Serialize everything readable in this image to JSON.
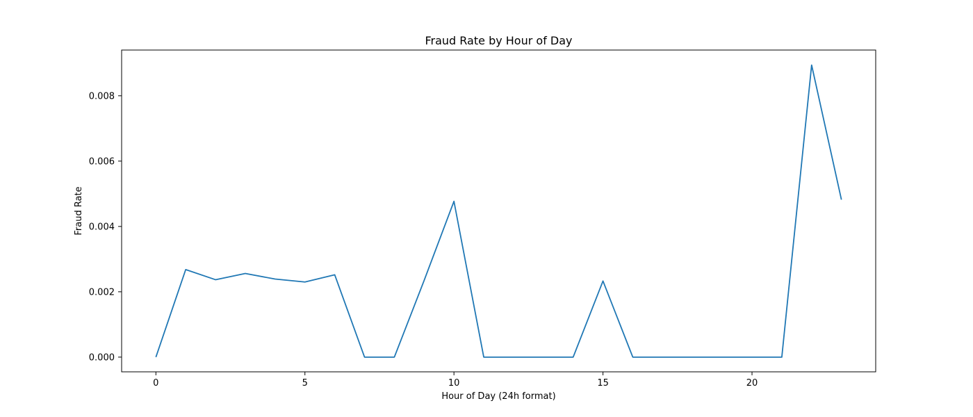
{
  "chart_data": {
    "type": "line",
    "title": "Fraud Rate by Hour of Day",
    "xlabel": "Hour of Day (24h format)",
    "ylabel": "Fraud Rate",
    "xlim": [
      -1.15,
      24.15
    ],
    "ylim": [
      -0.00045,
      0.0094
    ],
    "x_ticks": [
      0,
      5,
      10,
      15,
      20
    ],
    "x_tick_labels": [
      "0",
      "5",
      "10",
      "15",
      "20"
    ],
    "y_ticks": [
      0.0,
      0.002,
      0.004,
      0.006,
      0.008
    ],
    "y_tick_labels": [
      "0.000",
      "0.002",
      "0.004",
      "0.006",
      "0.008"
    ],
    "grid": false,
    "series": [
      {
        "color": "#1f77b4",
        "x": [
          0,
          1,
          2,
          3,
          4,
          5,
          6,
          7,
          8,
          9,
          10,
          11,
          12,
          13,
          14,
          15,
          16,
          17,
          18,
          19,
          20,
          21,
          22,
          23
        ],
        "y": [
          0.0,
          0.00268,
          0.00237,
          0.00256,
          0.00239,
          0.0023,
          0.00252,
          0.0,
          0.0,
          0.00235,
          0.00477,
          0.0,
          0.0,
          0.0,
          0.0,
          0.00233,
          0.0,
          0.0,
          0.0,
          0.0,
          0.0,
          0.0,
          0.00894,
          0.00482
        ]
      }
    ]
  }
}
